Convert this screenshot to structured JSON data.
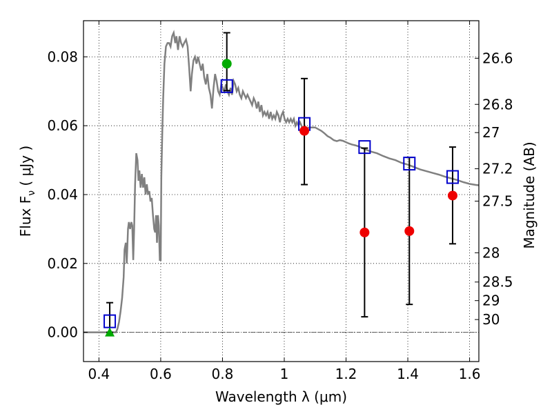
{
  "chart_data": {
    "type": "scatter",
    "xlabel": "Wavelength  λ (μm)",
    "ylabel": "Flux  F",
    "ylabel_sub": "ν",
    "ylabel_unit": " ( μJy )",
    "y2label": "Magnitude (AB)",
    "xlim": [
      0.35,
      1.63
    ],
    "ylim": [
      -0.0085,
      0.0905
    ],
    "grid": true,
    "x_ticks": [
      0.4,
      0.6,
      0.8,
      1.0,
      1.2,
      1.4,
      1.6
    ],
    "x_tick_labels": [
      "0.4",
      "0.6",
      "0.8",
      "1",
      "1.2",
      "1.4",
      "1.6"
    ],
    "y_ticks": [
      0.0,
      0.02,
      0.04,
      0.06,
      0.08
    ],
    "y_tick_labels": [
      "0.00",
      "0.02",
      "0.04",
      "0.06",
      "0.08"
    ],
    "y2_ticks": [
      {
        "flux": 0.0796,
        "label": "26.6"
      },
      {
        "flux": 0.0662,
        "label": "26.8"
      },
      {
        "flux": 0.058,
        "label": "27"
      },
      {
        "flux": 0.0475,
        "label": "27.2"
      },
      {
        "flux": 0.0381,
        "label": "27.5"
      },
      {
        "flux": 0.0231,
        "label": "28"
      },
      {
        "flux": 0.0146,
        "label": "28.5"
      },
      {
        "flux": 0.0092,
        "label": "29"
      },
      {
        "flux": 0.0037,
        "label": "30"
      }
    ],
    "model_spectrum": {
      "color": "#808080",
      "points": [
        [
          0.35,
          0.0
        ],
        [
          0.455,
          0.0
        ],
        [
          0.46,
          0.001
        ],
        [
          0.465,
          0.003
        ],
        [
          0.47,
          0.006
        ],
        [
          0.475,
          0.01
        ],
        [
          0.48,
          0.016
        ],
        [
          0.483,
          0.024
        ],
        [
          0.487,
          0.026
        ],
        [
          0.49,
          0.02
        ],
        [
          0.494,
          0.03
        ],
        [
          0.497,
          0.032
        ],
        [
          0.501,
          0.03
        ],
        [
          0.505,
          0.032
        ],
        [
          0.508,
          0.031
        ],
        [
          0.511,
          0.021
        ],
        [
          0.514,
          0.03
        ],
        [
          0.517,
          0.043
        ],
        [
          0.521,
          0.052
        ],
        [
          0.525,
          0.05
        ],
        [
          0.528,
          0.044
        ],
        [
          0.531,
          0.047
        ],
        [
          0.535,
          0.042
        ],
        [
          0.539,
          0.046
        ],
        [
          0.543,
          0.042
        ],
        [
          0.547,
          0.045
        ],
        [
          0.551,
          0.04
        ],
        [
          0.555,
          0.043
        ],
        [
          0.559,
          0.04
        ],
        [
          0.563,
          0.041
        ],
        [
          0.567,
          0.038
        ],
        [
          0.571,
          0.039
        ],
        [
          0.575,
          0.034
        ],
        [
          0.579,
          0.03
        ],
        [
          0.582,
          0.029
        ],
        [
          0.585,
          0.034
        ],
        [
          0.588,
          0.026
        ],
        [
          0.591,
          0.034
        ],
        [
          0.594,
          0.031
        ],
        [
          0.597,
          0.021
        ],
        [
          0.6,
          0.021
        ],
        [
          0.602,
          0.045
        ],
        [
          0.605,
          0.058
        ],
        [
          0.608,
          0.068
        ],
        [
          0.612,
          0.078
        ],
        [
          0.617,
          0.083
        ],
        [
          0.622,
          0.084
        ],
        [
          0.627,
          0.084
        ],
        [
          0.632,
          0.083
        ],
        [
          0.637,
          0.086
        ],
        [
          0.642,
          0.087
        ],
        [
          0.647,
          0.084
        ],
        [
          0.651,
          0.086
        ],
        [
          0.656,
          0.082
        ],
        [
          0.661,
          0.086
        ],
        [
          0.666,
          0.084
        ],
        [
          0.671,
          0.083
        ],
        [
          0.676,
          0.084
        ],
        [
          0.682,
          0.085
        ],
        [
          0.687,
          0.083
        ],
        [
          0.692,
          0.077
        ],
        [
          0.697,
          0.07
        ],
        [
          0.701,
          0.075
        ],
        [
          0.706,
          0.079
        ],
        [
          0.711,
          0.08
        ],
        [
          0.716,
          0.078
        ],
        [
          0.721,
          0.08
        ],
        [
          0.726,
          0.078
        ],
        [
          0.731,
          0.076
        ],
        [
          0.736,
          0.078
        ],
        [
          0.741,
          0.074
        ],
        [
          0.746,
          0.072
        ],
        [
          0.751,
          0.075
        ],
        [
          0.756,
          0.071
        ],
        [
          0.761,
          0.069
        ],
        [
          0.766,
          0.065
        ],
        [
          0.771,
          0.071
        ],
        [
          0.776,
          0.075
        ],
        [
          0.781,
          0.073
        ],
        [
          0.786,
          0.07
        ],
        [
          0.791,
          0.069
        ],
        [
          0.796,
          0.072
        ],
        [
          0.801,
          0.071
        ],
        [
          0.806,
          0.07
        ],
        [
          0.811,
          0.072
        ],
        [
          0.816,
          0.07
        ],
        [
          0.821,
          0.069
        ],
        [
          0.826,
          0.071
        ],
        [
          0.831,
          0.069
        ],
        [
          0.836,
          0.073
        ],
        [
          0.841,
          0.072
        ],
        [
          0.846,
          0.07
        ],
        [
          0.851,
          0.071
        ],
        [
          0.856,
          0.069
        ],
        [
          0.861,
          0.068
        ],
        [
          0.866,
          0.07
        ],
        [
          0.871,
          0.069
        ],
        [
          0.876,
          0.068
        ],
        [
          0.881,
          0.069
        ],
        [
          0.886,
          0.068
        ],
        [
          0.891,
          0.067
        ],
        [
          0.896,
          0.066
        ],
        [
          0.901,
          0.068
        ],
        [
          0.906,
          0.067
        ],
        [
          0.911,
          0.065
        ],
        [
          0.916,
          0.067
        ],
        [
          0.921,
          0.064
        ],
        [
          0.926,
          0.066
        ],
        [
          0.931,
          0.063
        ],
        [
          0.936,
          0.064
        ],
        [
          0.941,
          0.063
        ],
        [
          0.946,
          0.064
        ],
        [
          0.951,
          0.062
        ],
        [
          0.956,
          0.064
        ],
        [
          0.961,
          0.062
        ],
        [
          0.966,
          0.063
        ],
        [
          0.971,
          0.062
        ],
        [
          0.976,
          0.064
        ],
        [
          0.981,
          0.063
        ],
        [
          0.986,
          0.061
        ],
        [
          0.991,
          0.063
        ],
        [
          0.996,
          0.064
        ],
        [
          1.001,
          0.062
        ],
        [
          1.006,
          0.061
        ],
        [
          1.011,
          0.062
        ],
        [
          1.016,
          0.061
        ],
        [
          1.021,
          0.062
        ],
        [
          1.026,
          0.061
        ],
        [
          1.031,
          0.062
        ],
        [
          1.036,
          0.06
        ],
        [
          1.041,
          0.061
        ],
        [
          1.046,
          0.06
        ],
        [
          1.051,
          0.061
        ],
        [
          1.056,
          0.06
        ],
        [
          1.061,
          0.059
        ],
        [
          1.066,
          0.06
        ],
        [
          1.071,
          0.059
        ],
        [
          1.08,
          0.0595
        ],
        [
          1.09,
          0.0595
        ],
        [
          1.1,
          0.0595
        ],
        [
          1.11,
          0.059
        ],
        [
          1.12,
          0.0585
        ],
        [
          1.13,
          0.0578
        ],
        [
          1.14,
          0.057
        ],
        [
          1.15,
          0.0565
        ],
        [
          1.16,
          0.0558
        ],
        [
          1.17,
          0.0555
        ],
        [
          1.18,
          0.0558
        ],
        [
          1.19,
          0.0556
        ],
        [
          1.2,
          0.0552
        ],
        [
          1.21,
          0.0548
        ],
        [
          1.22,
          0.0545
        ],
        [
          1.23,
          0.0543
        ],
        [
          1.24,
          0.054
        ],
        [
          1.25,
          0.0536
        ],
        [
          1.26,
          0.0532
        ],
        [
          1.28,
          0.0525
        ],
        [
          1.3,
          0.052
        ],
        [
          1.32,
          0.0512
        ],
        [
          1.34,
          0.0505
        ],
        [
          1.36,
          0.05
        ],
        [
          1.38,
          0.0492
        ],
        [
          1.4,
          0.0487
        ],
        [
          1.42,
          0.048
        ],
        [
          1.44,
          0.0473
        ],
        [
          1.46,
          0.0468
        ],
        [
          1.48,
          0.0463
        ],
        [
          1.5,
          0.0458
        ],
        [
          1.52,
          0.0452
        ],
        [
          1.54,
          0.0447
        ],
        [
          1.56,
          0.0442
        ],
        [
          1.58,
          0.0436
        ],
        [
          1.6,
          0.0431
        ],
        [
          1.62,
          0.0428
        ],
        [
          1.63,
          0.0427
        ]
      ]
    },
    "model_photometry": {
      "color": "#0000cc",
      "marker": "open-square",
      "points": [
        [
          0.435,
          0.0032
        ],
        [
          0.814,
          0.0715
        ],
        [
          1.065,
          0.0605
        ],
        [
          1.26,
          0.0538
        ],
        [
          1.405,
          0.049
        ],
        [
          1.545,
          0.0451
        ]
      ]
    },
    "observed_detections": {
      "color": "#ee0000",
      "marker": "filled-circle",
      "points": [
        {
          "x": 1.065,
          "y": 0.0585,
          "err_low": 0.0429,
          "err_high": 0.0737
        },
        {
          "x": 1.26,
          "y": 0.029,
          "err_low": 0.0045,
          "err_high": 0.0535
        },
        {
          "x": 1.405,
          "y": 0.0294,
          "err_low": 0.0081,
          "err_high": 0.0508
        },
        {
          "x": 1.545,
          "y": 0.0397,
          "err_low": 0.0257,
          "err_high": 0.0538
        }
      ]
    },
    "upper_limits": {
      "color": "#00aa00",
      "points": [
        {
          "x": 0.814,
          "y": 0.078,
          "err_low": 0.0702,
          "err_high": 0.087,
          "marker": "filled-circle"
        },
        {
          "x": 0.435,
          "y": 0.0,
          "err_low": 0.0,
          "err_high": 0.0086,
          "marker": "triangle-up"
        }
      ]
    },
    "zero_line": {
      "y": 0.0,
      "style": "dash-dot"
    }
  }
}
